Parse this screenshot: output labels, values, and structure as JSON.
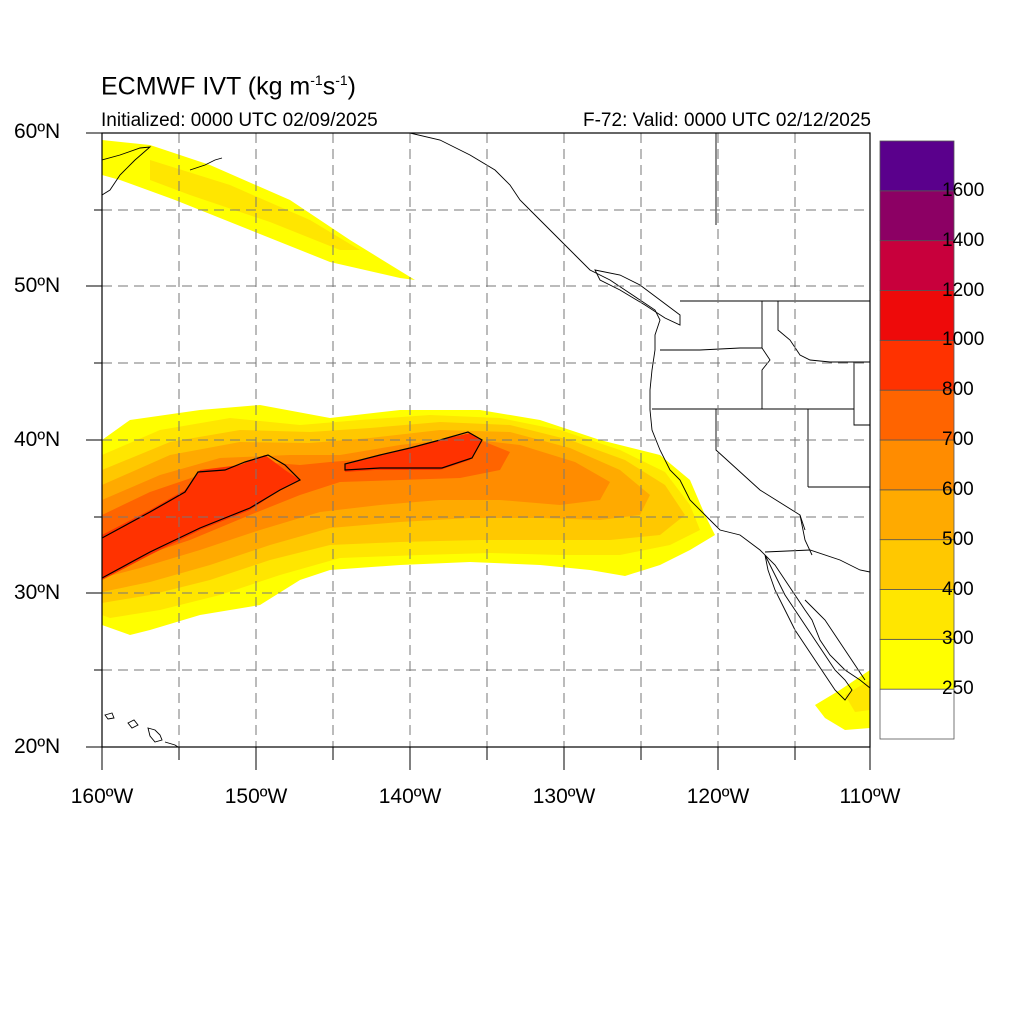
{
  "title": {
    "prefix": "ECMWF IVT (kg m",
    "sup1": "-1",
    "mid": "s",
    "sup2": "-1",
    "suffix": ")"
  },
  "init_text": "Initialized: 0000 UTC 02/09/2025",
  "valid_text": "F-72: Valid: 0000 UTC 02/12/2025",
  "map": {
    "lon_range": [
      -160,
      -110
    ],
    "lat_range": [
      20,
      60
    ],
    "lat_labels": [
      "20ºN",
      "30ºN",
      "40ºN",
      "50ºN",
      "60ºN"
    ],
    "lon_labels": [
      "160ºW",
      "150ºW",
      "140ºW",
      "130ºW",
      "120ºW",
      "110ºW"
    ],
    "grid": "dashed every 5 degrees"
  },
  "colorbar": {
    "labels": [
      "250",
      "300",
      "400",
      "500",
      "600",
      "700",
      "800",
      "1000",
      "1200",
      "1400",
      "1600"
    ],
    "colors": [
      "#ffffff",
      "#ffff00",
      "#ffe600",
      "#ffc800",
      "#ffaa00",
      "#ff8c00",
      "#ff6400",
      "#ff3200",
      "#ee0a0a",
      "#c8003c",
      "#8c0064",
      "#5a008c"
    ]
  },
  "contour_levels_shaded": {
    "250": "#ffff00",
    "300": "#ffe600",
    "400": "#ffc800",
    "500": "#ffaa00",
    "600": "#ff8c00",
    "700": "#ff6400",
    "800": "#ff3200"
  }
}
